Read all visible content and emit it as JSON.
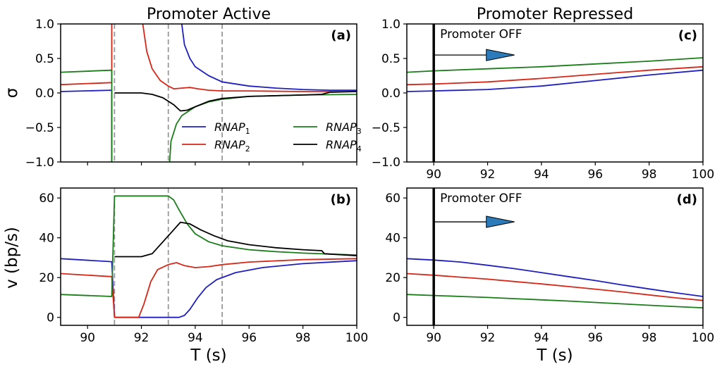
{
  "figure": {
    "col_titles": [
      "Promoter Active",
      "Promoter Repressed"
    ],
    "xlabel": "T (s)",
    "ylabel_top": "σ",
    "ylabel_bottom": "v (bp/s)"
  },
  "colors": {
    "RNAP1": "#1f1fbf",
    "RNAP2": "#d62718",
    "RNAP3": "#1a7d1a",
    "RNAP4": "#000000",
    "guide": "#999999",
    "arrow_fill": "#2b7bba"
  },
  "legend": [
    {
      "key": "RNAP1",
      "base": "RNAP",
      "sub": "1"
    },
    {
      "key": "RNAP3",
      "base": "RNAP",
      "sub": "3"
    },
    {
      "key": "RNAP2",
      "base": "RNAP",
      "sub": "2"
    },
    {
      "key": "RNAP4",
      "base": "RNAP",
      "sub": "4"
    }
  ],
  "chart_data": [
    {
      "id": "a",
      "label": "(a)",
      "type": "line",
      "xlim": [
        89,
        100
      ],
      "ylim": [
        -1.0,
        1.0
      ],
      "xticks": [
        90,
        92,
        94,
        96,
        98,
        100
      ],
      "show_xticklabels": false,
      "yticks": [
        -1.0,
        -0.5,
        0.0,
        0.5,
        1.0
      ],
      "ytick_labels": [
        "−1.0",
        "−0.5",
        "0.0",
        "0.5",
        "1.0"
      ],
      "vlines": [
        91,
        93,
        95
      ],
      "legend": true,
      "legend_position": "lower-right",
      "series": [
        {
          "key": "RNAP1",
          "points": [
            [
              89,
              0.02
            ],
            [
              90.9,
              0.04
            ],
            [
              90.9,
              -1.0
            ]
          ]
        },
        {
          "key": "RNAP1",
          "points": [
            [
              93.5,
              1.0
            ],
            [
              93.6,
              0.7
            ],
            [
              93.8,
              0.5
            ],
            [
              94.0,
              0.38
            ],
            [
              94.5,
              0.25
            ],
            [
              95,
              0.16
            ],
            [
              96,
              0.1
            ],
            [
              97,
              0.07
            ],
            [
              98,
              0.05
            ],
            [
              99,
              0.04
            ],
            [
              100,
              0.04
            ]
          ]
        },
        {
          "key": "RNAP2",
          "points": [
            [
              89,
              0.12
            ],
            [
              90.9,
              0.15
            ],
            [
              90.9,
              1.0
            ]
          ]
        },
        {
          "key": "RNAP2",
          "points": [
            [
              92.05,
              1.0
            ],
            [
              92.2,
              0.6
            ],
            [
              92.4,
              0.35
            ],
            [
              92.7,
              0.18
            ],
            [
              93,
              0.1
            ],
            [
              93.2,
              0.06
            ],
            [
              93.5,
              0.07
            ],
            [
              93.8,
              0.08
            ],
            [
              94.1,
              0.06
            ],
            [
              94.5,
              0.04
            ],
            [
              95,
              0.03
            ],
            [
              96,
              0.03
            ],
            [
              98,
              0.02
            ],
            [
              100,
              0.02
            ]
          ]
        },
        {
          "key": "RNAP3",
          "points": [
            [
              89,
              0.3
            ],
            [
              90.9,
              0.33
            ],
            [
              90.9,
              -1.0
            ]
          ]
        },
        {
          "key": "RNAP3",
          "points": [
            [
              93.05,
              -1.0
            ],
            [
              93.1,
              -0.7
            ],
            [
              93.3,
              -0.45
            ],
            [
              93.5,
              -0.33
            ],
            [
              94,
              -0.2
            ],
            [
              94.5,
              -0.13
            ],
            [
              95,
              -0.09
            ],
            [
              96,
              -0.05
            ],
            [
              97,
              -0.04
            ],
            [
              98,
              -0.03
            ],
            [
              100,
              -0.02
            ]
          ]
        },
        {
          "key": "RNAP4",
          "points": [
            [
              91,
              0.0
            ],
            [
              92,
              0.0
            ],
            [
              92.4,
              -0.02
            ],
            [
              92.8,
              -0.07
            ],
            [
              93.2,
              -0.17
            ],
            [
              93.45,
              -0.26
            ],
            [
              93.7,
              -0.25
            ],
            [
              94,
              -0.2
            ],
            [
              94.5,
              -0.12
            ],
            [
              95,
              -0.08
            ],
            [
              96,
              -0.05
            ],
            [
              97,
              -0.04
            ],
            [
              98,
              -0.03
            ],
            [
              98.7,
              -0.02
            ],
            [
              99,
              0.01
            ],
            [
              100,
              0.02
            ]
          ]
        }
      ]
    },
    {
      "id": "b",
      "label": "(b)",
      "type": "line",
      "xlim": [
        89,
        100
      ],
      "ylim": [
        -4,
        65
      ],
      "xticks": [
        90,
        92,
        94,
        96,
        98,
        100
      ],
      "show_xticklabels": true,
      "yticks": [
        0,
        20,
        40,
        60
      ],
      "ytick_labels": [
        "0",
        "20",
        "40",
        "60"
      ],
      "vlines": [
        91,
        93,
        95
      ],
      "legend": false,
      "series": [
        {
          "key": "RNAP1",
          "points": [
            [
              89,
              29.5
            ],
            [
              90.9,
              28
            ],
            [
              91,
              0
            ],
            [
              93.4,
              0
            ],
            [
              93.6,
              1
            ],
            [
              93.8,
              4
            ],
            [
              94.1,
              10
            ],
            [
              94.4,
              15
            ],
            [
              94.8,
              19
            ],
            [
              95.5,
              22.5
            ],
            [
              96.5,
              25
            ],
            [
              98,
              27
            ],
            [
              100,
              28.5
            ]
          ]
        },
        {
          "key": "RNAP2",
          "points": [
            [
              89,
              22
            ],
            [
              90.9,
              20.5
            ],
            [
              91,
              0
            ],
            [
              91.9,
              0
            ],
            [
              92.1,
              7
            ],
            [
              92.35,
              18
            ],
            [
              92.6,
              24
            ],
            [
              93,
              26.5
            ],
            [
              93.3,
              27.5
            ],
            [
              93.6,
              26
            ],
            [
              94,
              25
            ],
            [
              94.5,
              25.5
            ],
            [
              95,
              26.5
            ],
            [
              96,
              27.8
            ],
            [
              98,
              29
            ],
            [
              100,
              29.5
            ]
          ]
        },
        {
          "key": "RNAP3",
          "points": [
            [
              89,
              11.5
            ],
            [
              90.9,
              10.5
            ],
            [
              91,
              61
            ],
            [
              93,
              61
            ],
            [
              93.2,
              59
            ],
            [
              93.4,
              54
            ],
            [
              93.7,
              47
            ],
            [
              94,
              42
            ],
            [
              94.5,
              38
            ],
            [
              95,
              36
            ],
            [
              96,
              34
            ],
            [
              97,
              33
            ],
            [
              98,
              32.3
            ],
            [
              100,
              31.3
            ]
          ]
        },
        {
          "key": "RNAP4",
          "points": [
            [
              91,
              30.5
            ],
            [
              92,
              30.5
            ],
            [
              92.4,
              32
            ],
            [
              92.8,
              38
            ],
            [
              93.2,
              44
            ],
            [
              93.45,
              47.8
            ],
            [
              93.8,
              47
            ],
            [
              94.2,
              44
            ],
            [
              94.7,
              41
            ],
            [
              95.2,
              38.5
            ],
            [
              96,
              36.5
            ],
            [
              97,
              35
            ],
            [
              98,
              34
            ],
            [
              98.7,
              33.5
            ],
            [
              98.8,
              32
            ],
            [
              100,
              31
            ]
          ]
        }
      ]
    },
    {
      "id": "c",
      "label": "(c)",
      "type": "line",
      "xlim": [
        89,
        100
      ],
      "ylim": [
        -1.0,
        1.0
      ],
      "xticks": [
        90,
        92,
        94,
        96,
        98,
        100
      ],
      "show_xticklabels": true,
      "yticks": [
        -1.0,
        -0.5,
        0.0,
        0.5,
        1.0
      ],
      "ytick_labels": [
        "−1.0",
        "−0.5",
        "0.0",
        "0.5",
        "1.0"
      ],
      "vlines": [],
      "promoter_off_x": 90,
      "annotation": "Promoter OFF",
      "arrow": {
        "x_start": 90,
        "x_end": 93,
        "y": 0.55
      },
      "legend": false,
      "series": [
        {
          "key": "RNAP1",
          "points": [
            [
              89,
              0.02
            ],
            [
              90,
              0.03
            ],
            [
              92,
              0.05
            ],
            [
              94,
              0.1
            ],
            [
              96,
              0.18
            ],
            [
              98,
              0.26
            ],
            [
              100,
              0.33
            ]
          ]
        },
        {
          "key": "RNAP2",
          "points": [
            [
              89,
              0.12
            ],
            [
              90,
              0.13
            ],
            [
              92,
              0.16
            ],
            [
              94,
              0.21
            ],
            [
              96,
              0.27
            ],
            [
              98,
              0.33
            ],
            [
              100,
              0.38
            ]
          ]
        },
        {
          "key": "RNAP3",
          "points": [
            [
              89,
              0.3
            ],
            [
              90,
              0.32
            ],
            [
              92,
              0.35
            ],
            [
              94,
              0.38
            ],
            [
              96,
              0.42
            ],
            [
              98,
              0.46
            ],
            [
              100,
              0.51
            ]
          ]
        }
      ]
    },
    {
      "id": "d",
      "label": "(d)",
      "type": "line",
      "xlim": [
        89,
        100
      ],
      "ylim": [
        -4,
        65
      ],
      "xticks": [
        90,
        92,
        94,
        96,
        98,
        100
      ],
      "show_xticklabels": true,
      "yticks": [
        0,
        20,
        40,
        60
      ],
      "ytick_labels": [
        "0",
        "20",
        "40",
        "60"
      ],
      "vlines": [],
      "promoter_off_x": 90,
      "annotation": "Promoter OFF",
      "arrow": {
        "x_start": 90,
        "x_end": 93,
        "y": 48
      },
      "legend": false,
      "series": [
        {
          "key": "RNAP1",
          "points": [
            [
              89,
              29.5
            ],
            [
              90,
              28.8
            ],
            [
              91,
              27.8
            ],
            [
              92,
              26.2
            ],
            [
              93,
              24.5
            ],
            [
              94,
              22.5
            ],
            [
              95,
              20.5
            ],
            [
              96,
              18.5
            ],
            [
              97,
              16.3
            ],
            [
              98,
              14.3
            ],
            [
              99,
              12.3
            ],
            [
              100,
              10.5
            ]
          ]
        },
        {
          "key": "RNAP2",
          "points": [
            [
              89,
              22
            ],
            [
              90,
              21.2
            ],
            [
              91,
              20.2
            ],
            [
              92,
              19.2
            ],
            [
              93,
              18
            ],
            [
              94,
              16.8
            ],
            [
              95,
              15.5
            ],
            [
              96,
              14.2
            ],
            [
              97,
              12.8
            ],
            [
              98,
              11.3
            ],
            [
              99,
              9.8
            ],
            [
              100,
              8.5
            ]
          ]
        },
        {
          "key": "RNAP3",
          "points": [
            [
              89,
              11.5
            ],
            [
              90,
              11
            ],
            [
              91,
              10.5
            ],
            [
              92,
              10
            ],
            [
              93,
              9.4
            ],
            [
              94,
              8.8
            ],
            [
              95,
              8.2
            ],
            [
              96,
              7.5
            ],
            [
              97,
              6.8
            ],
            [
              98,
              6.1
            ],
            [
              99,
              5.4
            ],
            [
              100,
              4.8
            ]
          ]
        }
      ]
    }
  ]
}
